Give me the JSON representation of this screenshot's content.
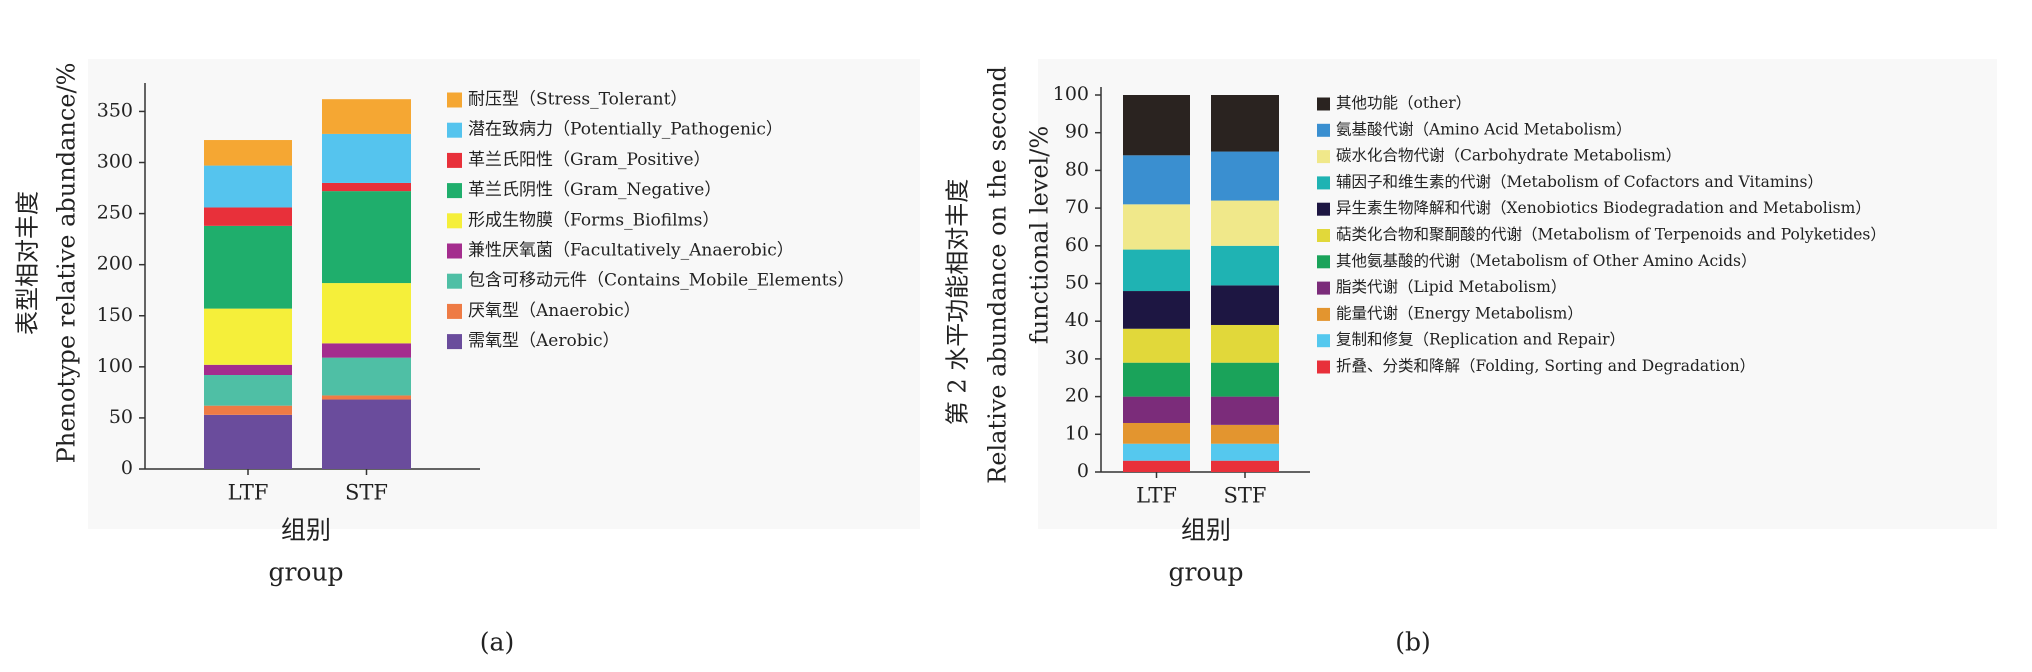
{
  "chart_data": [
    {
      "type": "stacked_bar",
      "caption": "(a)",
      "ylabel": [
        "表型相对丰度",
        "Phenotype relative abundance/%"
      ],
      "xlabel": [
        "组别",
        "group"
      ],
      "categories": [
        "LTF",
        "STF"
      ],
      "ylim": [
        0,
        370
      ],
      "yticks": [
        0,
        50,
        100,
        150,
        200,
        250,
        300,
        350
      ],
      "series": [
        {
          "name": "需氧型（Aerobic）",
          "color": "#6a4c9c",
          "values": [
            53,
            68
          ]
        },
        {
          "name": "厌氧型（Anaerobic）",
          "color": "#ee7b45",
          "values": [
            9,
            4
          ]
        },
        {
          "name": "包含可移动元件（Contains_Mobile_Elements）",
          "color": "#4fbfa5",
          "values": [
            30,
            37
          ]
        },
        {
          "name": "兼性厌氧菌（Facultatively_Anaerobic）",
          "color": "#a42d8e",
          "values": [
            10,
            14
          ]
        },
        {
          "name": "形成生物膜（Forms_Biofilms）",
          "color": "#f5ef3a",
          "values": [
            55,
            59
          ]
        },
        {
          "name": "革兰氏阴性（Gram_Negative）",
          "color": "#1fae6c",
          "values": [
            81,
            90
          ]
        },
        {
          "name": "革兰氏阳性（Gram_Positive）",
          "color": "#e8303a",
          "values": [
            18,
            8
          ]
        },
        {
          "name": "潜在致病力（Potentially_Pathogenic）",
          "color": "#55c4ee",
          "values": [
            41,
            48
          ]
        },
        {
          "name": "耐压型（Stress_Tolerant）",
          "color": "#f5a733",
          "values": [
            25,
            34
          ]
        }
      ]
    },
    {
      "type": "stacked_bar",
      "caption": "(b)",
      "ylabel": [
        "第 2 水平功能相对丰度",
        "Relative abundance on the second",
        "functional level/%"
      ],
      "xlabel": [
        "组别",
        "group"
      ],
      "categories": [
        "LTF",
        "STF"
      ],
      "ylim": [
        0,
        100
      ],
      "yticks": [
        0,
        10,
        20,
        30,
        40,
        50,
        60,
        70,
        80,
        90,
        100
      ],
      "series": [
        {
          "name": "折叠、分类和降解（Folding, Sorting and Degradation）",
          "color": "#e8303a",
          "values": [
            3,
            3
          ]
        },
        {
          "name": "复制和修复（Replication and Repair）",
          "color": "#55c8ee",
          "values": [
            4.5,
            4.5
          ]
        },
        {
          "name": "能量代谢（Energy Metabolism）",
          "color": "#e3952f",
          "values": [
            5.5,
            5
          ]
        },
        {
          "name": "脂类代谢（Lipid Metabolism）",
          "color": "#7b2c7a",
          "values": [
            7,
            7.5
          ]
        },
        {
          "name": "其他氨基酸的代谢（Metabolism of Other Amino Acids）",
          "color": "#1aa35a",
          "values": [
            9,
            9
          ]
        },
        {
          "name": "萜类化合物和聚酮酸的代谢（Metabolism of Terpenoids and Polyketides）",
          "color": "#e1d83a",
          "values": [
            9,
            10
          ]
        },
        {
          "name": "异生素生物降解和代谢（Xenobiotics Biodegradation and Metabolism）",
          "color": "#1d1642",
          "values": [
            10,
            10.5
          ]
        },
        {
          "name": "辅因子和维生素的代谢（Metabolism of Cofactors and Vitamins）",
          "color": "#1fb3b3",
          "values": [
            11,
            10.5
          ]
        },
        {
          "name": "碳水化合物代谢（Carbohydrate Metabolism）",
          "color": "#f0e88a",
          "values": [
            12,
            12
          ]
        },
        {
          "name": "氨基酸代谢（Amino Acid Metabolism）",
          "color": "#3a8fd0",
          "values": [
            13,
            13
          ]
        },
        {
          "name": "其他功能（other）",
          "color": "#2a2320",
          "values": [
            16,
            15
          ]
        }
      ]
    }
  ]
}
